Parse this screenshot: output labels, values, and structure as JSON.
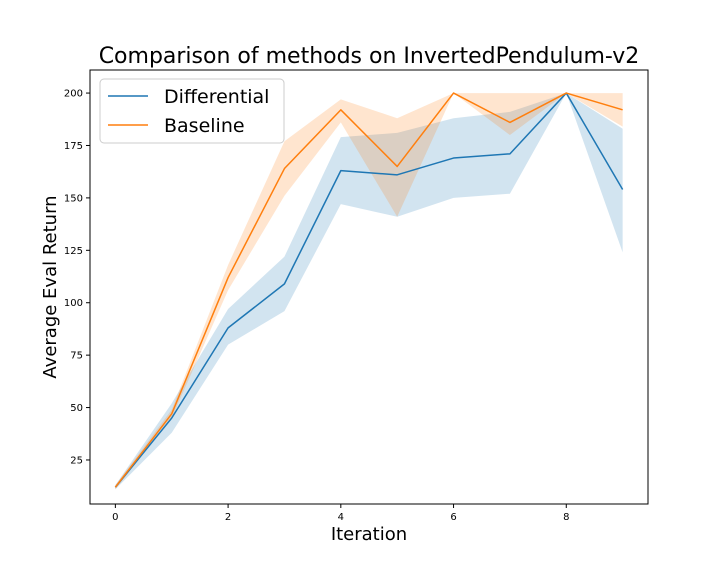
{
  "chart_data": {
    "type": "line",
    "title": "Comparison of methods on InvertedPendulum-v2",
    "xlabel": "Iteration",
    "ylabel": "Average Eval Return",
    "xlim": [
      -0.45,
      9.45
    ],
    "ylim": [
      4,
      211
    ],
    "xticks": [
      0,
      2,
      4,
      6,
      8
    ],
    "yticks": [
      25,
      50,
      75,
      100,
      125,
      150,
      175,
      200
    ],
    "grid": false,
    "legend_position": "top-left",
    "x": [
      0,
      1,
      2,
      3,
      4,
      5,
      6,
      7,
      8,
      9
    ],
    "series": [
      {
        "name": "Differential",
        "color": "#1f77b4",
        "values": [
          12,
          45,
          88,
          109,
          163,
          161,
          169,
          171,
          200,
          154
        ],
        "lower": [
          11,
          38,
          80,
          96,
          147,
          141,
          150,
          152,
          200,
          124
        ],
        "upper": [
          13,
          52,
          97,
          122,
          179,
          181,
          188,
          191,
          200,
          183
        ]
      },
      {
        "name": "Baseline",
        "color": "#ff7f0e",
        "values": [
          12,
          47,
          112,
          164,
          192,
          165,
          200,
          186,
          200,
          192
        ],
        "lower": [
          11,
          45,
          106,
          151,
          186,
          141,
          200,
          180,
          200,
          184
        ],
        "upper": [
          13,
          49,
          118,
          177,
          197,
          188,
          200,
          200,
          200,
          200
        ]
      }
    ]
  }
}
